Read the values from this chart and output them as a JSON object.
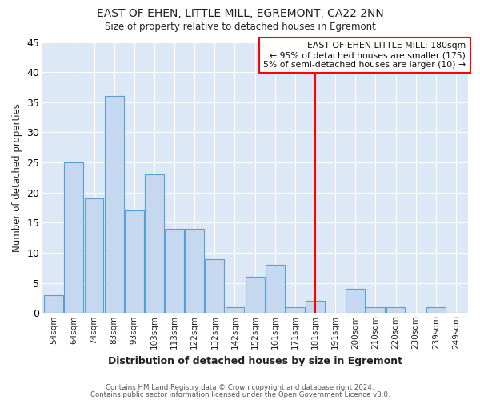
{
  "title": "EAST OF EHEN, LITTLE MILL, EGREMONT, CA22 2NN",
  "subtitle": "Size of property relative to detached houses in Egremont",
  "xlabel": "Distribution of detached houses by size in Egremont",
  "ylabel": "Number of detached properties",
  "footnote1": "Contains HM Land Registry data © Crown copyright and database right 2024.",
  "footnote2": "Contains public sector information licensed under the Open Government Licence v3.0.",
  "bar_labels": [
    "54sqm",
    "64sqm",
    "74sqm",
    "83sqm",
    "93sqm",
    "103sqm",
    "113sqm",
    "122sqm",
    "132sqm",
    "142sqm",
    "152sqm",
    "161sqm",
    "171sqm",
    "181sqm",
    "191sqm",
    "200sqm",
    "210sqm",
    "220sqm",
    "230sqm",
    "239sqm",
    "249sqm"
  ],
  "bar_values": [
    3,
    25,
    19,
    36,
    17,
    23,
    14,
    14,
    9,
    1,
    6,
    8,
    1,
    2,
    0,
    4,
    1,
    1,
    0,
    1,
    0
  ],
  "bar_color": "#c5d8f0",
  "bar_edge_color": "#5a9fd4",
  "vline_x": 13,
  "vline_color": "red",
  "ylim": [
    0,
    45
  ],
  "yticks": [
    0,
    5,
    10,
    15,
    20,
    25,
    30,
    35,
    40,
    45
  ],
  "annotation_title": "EAST OF EHEN LITTLE MILL: 180sqm",
  "annotation_line2": "← 95% of detached houses are smaller (175)",
  "annotation_line3": "5% of semi-detached houses are larger (10) →",
  "annotation_border_color": "red",
  "bg_color": "#ffffff",
  "plot_bg_color": "#dce8f5"
}
